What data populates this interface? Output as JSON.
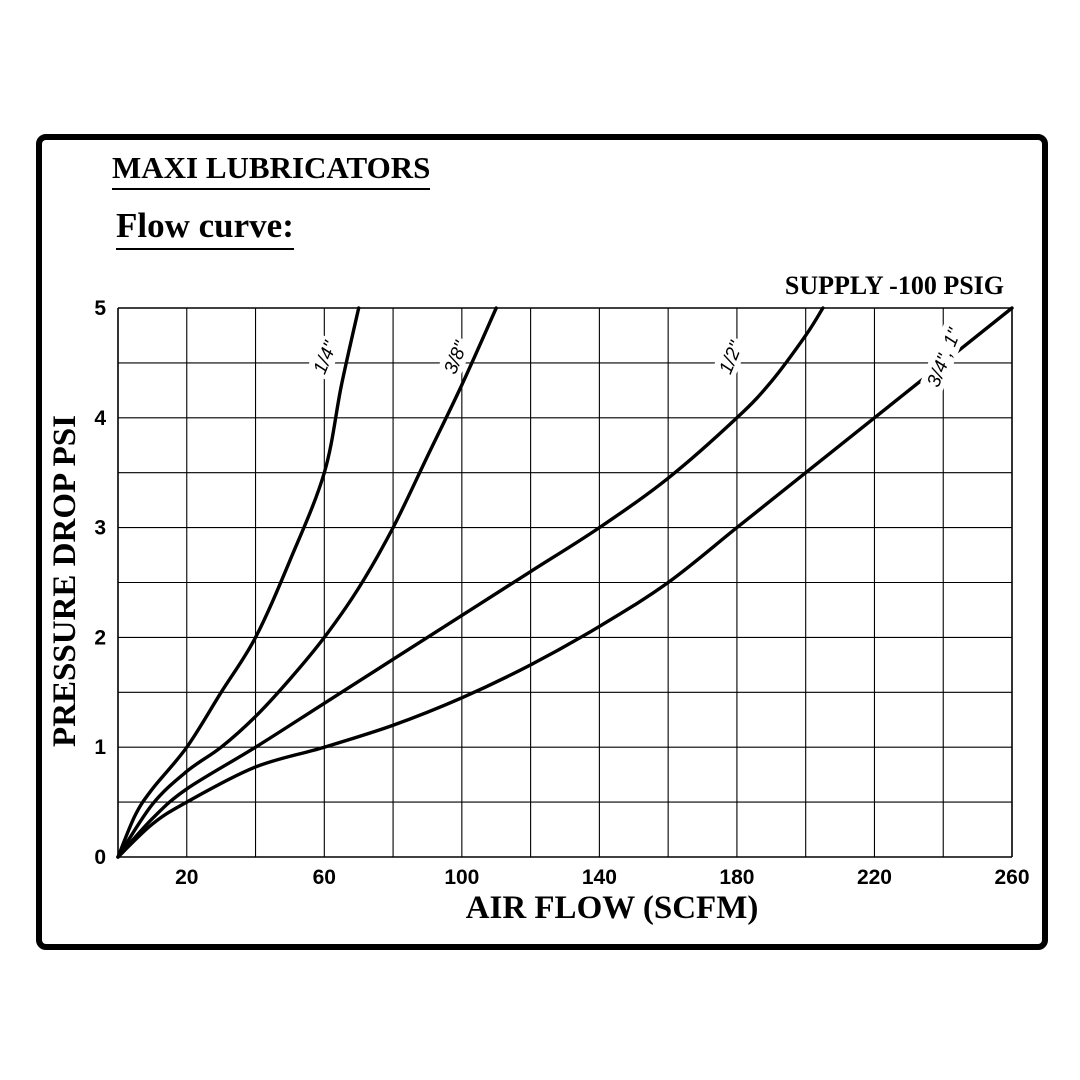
{
  "page": {
    "title": "MAXI LUBRICATORS",
    "subtitle": "Flow curve:"
  },
  "chart_data": {
    "type": "line",
    "annotation": "SUPPLY -100 PSIG",
    "xlabel": "AIR FLOW (SCFM)",
    "ylabel": "PRESSURE DROP PSI",
    "xlim": [
      0,
      260
    ],
    "ylim": [
      0,
      5
    ],
    "x_major_ticks": [
      20,
      60,
      100,
      140,
      180,
      220,
      260
    ],
    "x_grid_step": 20,
    "y_ticks": [
      0,
      1,
      2,
      3,
      4,
      5
    ],
    "y_grid_step": 0.5,
    "grid": true,
    "x_tick_labels": [
      "20",
      "60",
      "100",
      "140",
      "180",
      "220",
      "260"
    ],
    "y_tick_labels": [
      "0",
      "1",
      "2",
      "3",
      "4",
      "5"
    ],
    "series": [
      {
        "name": "1/4\"",
        "x": [
          0,
          5,
          10,
          20,
          30,
          40,
          50,
          60,
          65,
          70
        ],
        "y": [
          0,
          0.38,
          0.62,
          1.0,
          1.5,
          2.0,
          2.7,
          3.5,
          4.3,
          5.0
        ],
        "label_x": 60,
        "label_y": 4.55
      },
      {
        "name": "3/8\"",
        "x": [
          0,
          10,
          20,
          30,
          40,
          50,
          60,
          70,
          80,
          90,
          100,
          110
        ],
        "y": [
          0,
          0.48,
          0.78,
          1.0,
          1.28,
          1.62,
          2.0,
          2.45,
          3.0,
          3.65,
          4.3,
          5.0
        ],
        "label_x": 98,
        "label_y": 4.55
      },
      {
        "name": "1/2\"",
        "x": [
          0,
          10,
          20,
          40,
          60,
          80,
          100,
          120,
          140,
          160,
          180,
          190,
          200,
          205
        ],
        "y": [
          0,
          0.35,
          0.62,
          1.0,
          1.4,
          1.8,
          2.2,
          2.6,
          3.0,
          3.45,
          4.0,
          4.33,
          4.75,
          5.0
        ],
        "label_x": 178,
        "label_y": 4.55
      },
      {
        "name": "3/4\", 1\"",
        "x": [
          0,
          10,
          20,
          40,
          60,
          80,
          100,
          120,
          140,
          160,
          180,
          200,
          220,
          240,
          260
        ],
        "y": [
          0,
          0.3,
          0.5,
          0.82,
          1.0,
          1.2,
          1.45,
          1.75,
          2.1,
          2.5,
          3.0,
          3.5,
          4.0,
          4.5,
          5.0
        ],
        "label_x": 240,
        "label_y": 4.55
      }
    ]
  }
}
